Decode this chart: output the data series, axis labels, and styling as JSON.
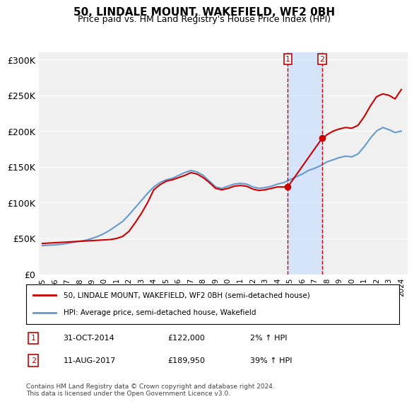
{
  "title": "50, LINDALE MOUNT, WAKEFIELD, WF2 0BH",
  "subtitle": "Price paid vs. HM Land Registry's House Price Index (HPI)",
  "xlabel": "",
  "ylabel": "",
  "ylim": [
    0,
    310000
  ],
  "yticks": [
    0,
    50000,
    100000,
    150000,
    200000,
    250000,
    300000
  ],
  "ytick_labels": [
    "£0",
    "£50K",
    "£100K",
    "£150K",
    "£200K",
    "£250K",
    "£300K"
  ],
  "background_color": "#ffffff",
  "plot_bg_color": "#f0f0f0",
  "grid_color": "#ffffff",
  "purchase1_date": 2014.83,
  "purchase1_price": 122000,
  "purchase1_label": "1",
  "purchase1_text": "31-OCT-2014",
  "purchase1_price_text": "£122,000",
  "purchase1_hpi_text": "2% ↑ HPI",
  "purchase2_date": 2017.6,
  "purchase2_price": 189950,
  "purchase2_label": "2",
  "purchase2_text": "11-AUG-2017",
  "purchase2_price_text": "£189,950",
  "purchase2_hpi_text": "39% ↑ HPI",
  "legend_line1": "50, LINDALE MOUNT, WAKEFIELD, WF2 0BH (semi-detached house)",
  "legend_line2": "HPI: Average price, semi-detached house, Wakefield",
  "footer": "Contains HM Land Registry data © Crown copyright and database right 2024.\nThis data is licensed under the Open Government Licence v3.0.",
  "price_line_color": "#cc0000",
  "hpi_line_color": "#6699cc",
  "shade_color": "#cce0ff",
  "dashed_line_color": "#cc0000",
  "marker_box_color": "#cc0000",
  "hpi_data_x": [
    1995,
    1995.5,
    1996,
    1996.5,
    1997,
    1997.5,
    1998,
    1998.5,
    1999,
    1999.5,
    2000,
    2000.5,
    2001,
    2001.5,
    2002,
    2002.5,
    2003,
    2003.5,
    2004,
    2004.5,
    2005,
    2005.5,
    2006,
    2006.5,
    2007,
    2007.5,
    2008,
    2008.5,
    2009,
    2009.5,
    2010,
    2010.5,
    2011,
    2011.5,
    2012,
    2012.5,
    2013,
    2013.5,
    2014,
    2014.5,
    2015,
    2015.5,
    2016,
    2016.5,
    2017,
    2017.5,
    2018,
    2018.5,
    2019,
    2019.5,
    2020,
    2020.5,
    2021,
    2021.5,
    2022,
    2022.5,
    2023,
    2023.5,
    2024
  ],
  "hpi_data_y": [
    40000,
    40500,
    41000,
    41800,
    43000,
    44500,
    46000,
    47500,
    50000,
    53000,
    57000,
    62000,
    68000,
    74000,
    83000,
    93000,
    103000,
    113000,
    122000,
    128000,
    132000,
    134000,
    138000,
    142000,
    145000,
    143000,
    138000,
    130000,
    122000,
    120000,
    123000,
    126000,
    127000,
    126000,
    122000,
    120000,
    121000,
    123000,
    126000,
    128000,
    132000,
    136000,
    140000,
    145000,
    148000,
    152000,
    157000,
    160000,
    163000,
    165000,
    164000,
    168000,
    178000,
    190000,
    200000,
    205000,
    202000,
    198000,
    200000
  ],
  "price_data_x": [
    1995.0,
    1995.5,
    1996.0,
    1996.5,
    1997.0,
    1997.5,
    1998.0,
    1998.5,
    1999.0,
    1999.5,
    2000.0,
    2000.5,
    2001.0,
    2001.5,
    2002.0,
    2002.5,
    2003.0,
    2003.5,
    2004.0,
    2004.5,
    2005.0,
    2005.5,
    2006.0,
    2006.5,
    2007.0,
    2007.5,
    2008.0,
    2008.5,
    2009.0,
    2009.5,
    2010.0,
    2010.5,
    2011.0,
    2011.5,
    2012.0,
    2012.5,
    2013.0,
    2013.5,
    2014.0,
    2014.83,
    2017.6,
    2017.8,
    2018.0,
    2018.5,
    2019.0,
    2019.5,
    2020.0,
    2020.5,
    2021.0,
    2021.5,
    2022.0,
    2022.5,
    2023.0,
    2023.5,
    2024.0
  ],
  "price_data_y": [
    43000,
    43500,
    44000,
    44500,
    45000,
    45500,
    46000,
    46500,
    47000,
    47500,
    48000,
    48500,
    50000,
    53000,
    60000,
    72000,
    85000,
    100000,
    118000,
    125000,
    130000,
    132000,
    135000,
    138000,
    142000,
    140000,
    135000,
    128000,
    120000,
    118000,
    120000,
    123000,
    124000,
    123000,
    119000,
    117000,
    118000,
    120000,
    122000,
    122000,
    189950,
    192000,
    195000,
    200000,
    203000,
    205000,
    204000,
    208000,
    220000,
    235000,
    248000,
    252000,
    250000,
    245000,
    258000
  ],
  "xtick_years": [
    1995,
    1996,
    1997,
    1998,
    1999,
    2000,
    2001,
    2002,
    2003,
    2004,
    2005,
    2006,
    2007,
    2008,
    2009,
    2010,
    2011,
    2012,
    2013,
    2014,
    2015,
    2016,
    2017,
    2018,
    2019,
    2020,
    2021,
    2022,
    2023,
    2024
  ]
}
